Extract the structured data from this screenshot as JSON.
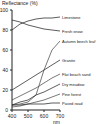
{
  "chart_data": {
    "type": "line",
    "y_label": "Reflectance (%)",
    "x_label": "nm",
    "x": [
      400,
      450,
      500,
      550,
      600,
      650,
      700
    ],
    "xlim": [
      400,
      700
    ],
    "xticks": [
      400,
      500,
      600,
      700
    ],
    "ylim": [
      0,
      100
    ],
    "yticks": [
      0,
      20,
      40,
      60,
      80,
      100
    ],
    "grid": false,
    "series": [
      {
        "name": "Limestone",
        "color": "#333333",
        "values": [
          80,
          86,
          89,
          91,
          92,
          92,
          93
        ]
      },
      {
        "name": "Fresh snow",
        "color": "#333333",
        "values": [
          90,
          88,
          85,
          83,
          81,
          80,
          79
        ]
      },
      {
        "name": "Autumn beech leaf",
        "color": "#555555",
        "values": [
          5,
          6,
          8,
          15,
          40,
          60,
          69
        ]
      },
      {
        "name": "Granite",
        "color": "#333333",
        "values": [
          20,
          25,
          30,
          35,
          40,
          45,
          50
        ]
      },
      {
        "name": "Flat beach sand",
        "color": "#555555",
        "values": [
          10,
          14,
          18,
          22,
          27,
          32,
          36
        ]
      },
      {
        "name": "Dry meadow",
        "color": "#333333",
        "values": [
          5,
          8,
          10,
          15,
          18,
          22,
          26
        ]
      },
      {
        "name": "Pine forest",
        "color": "#555555",
        "values": [
          3,
          4,
          6,
          8,
          10,
          13,
          16
        ]
      },
      {
        "name": "Paved road",
        "color": "#333333",
        "values": [
          5,
          5,
          6,
          6,
          6,
          7,
          7
        ]
      }
    ]
  }
}
